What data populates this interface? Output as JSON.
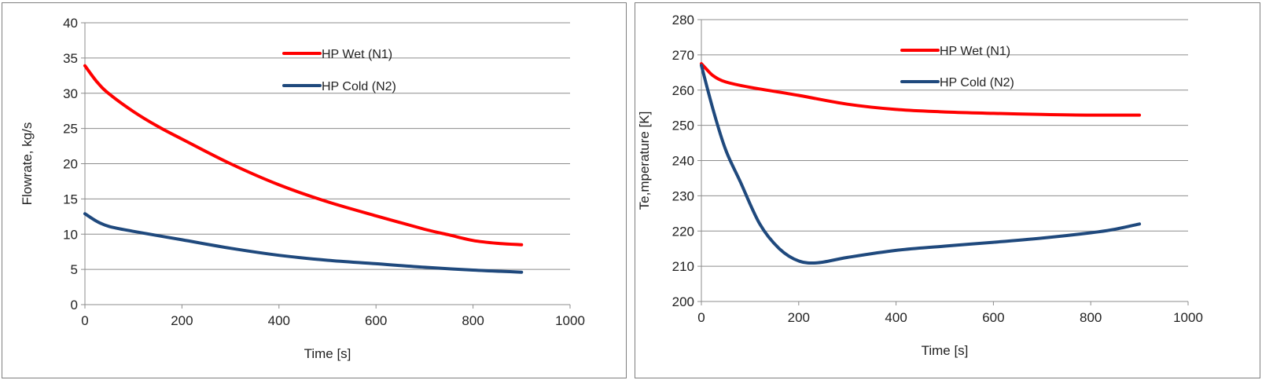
{
  "chart_data": [
    {
      "type": "line",
      "xlabel": "Time [s]",
      "ylabel": "Flowrate, kg/s",
      "xlim": [
        0,
        1000
      ],
      "ylim": [
        0,
        40
      ],
      "x_ticks": [
        "0",
        "200",
        "400",
        "600",
        "800",
        "1000"
      ],
      "y_ticks": [
        "0",
        "5",
        "10",
        "15",
        "20",
        "25",
        "30",
        "35",
        "40"
      ],
      "grid": "horizontal",
      "legend": "top-center",
      "series": [
        {
          "name": "HP Wet (N1)",
          "color": "#ff0000",
          "x": [
            0,
            25,
            50,
            100,
            150,
            200,
            300,
            400,
            500,
            600,
            700,
            750,
            800,
            850,
            900
          ],
          "y": [
            33.9,
            31.6,
            29.9,
            27.4,
            25.3,
            23.5,
            20.0,
            17.0,
            14.6,
            12.6,
            10.7,
            9.9,
            9.1,
            8.7,
            8.5
          ]
        },
        {
          "name": "HP Cold (N2)",
          "color": "#1f497d",
          "x": [
            0,
            25,
            50,
            100,
            200,
            300,
            400,
            500,
            600,
            700,
            800,
            900
          ],
          "y": [
            12.9,
            11.8,
            11.1,
            10.4,
            9.2,
            8.0,
            7.0,
            6.3,
            5.8,
            5.3,
            4.9,
            4.6
          ]
        }
      ]
    },
    {
      "type": "line",
      "xlabel": "Time [s]",
      "ylabel": "Te,mperature [K]",
      "xlim": [
        0,
        1000
      ],
      "ylim": [
        200,
        280
      ],
      "x_ticks": [
        "0",
        "200",
        "400",
        "600",
        "800",
        "1000"
      ],
      "y_ticks": [
        "200",
        "210",
        "220",
        "230",
        "240",
        "250",
        "260",
        "270",
        "280"
      ],
      "grid": "horizontal",
      "legend": "top-center",
      "series": [
        {
          "name": "HP Wet (N1)",
          "color": "#ff0000",
          "x": [
            0,
            10,
            25,
            50,
            100,
            200,
            300,
            400,
            500,
            600,
            700,
            800,
            900
          ],
          "y": [
            267.5,
            266.0,
            264.0,
            262.3,
            260.8,
            258.5,
            256.0,
            254.5,
            253.8,
            253.4,
            253.1,
            252.9,
            252.9
          ]
        },
        {
          "name": "HP Cold (N2)",
          "color": "#1f497d",
          "x": [
            0,
            25,
            50,
            80,
            120,
            160,
            200,
            240,
            300,
            400,
            500,
            600,
            700,
            800,
            850,
            900
          ],
          "y": [
            267,
            254,
            243,
            234,
            222,
            215,
            211.5,
            211,
            212.5,
            214.5,
            215.7,
            216.8,
            218,
            219.5,
            220.5,
            222
          ]
        }
      ]
    }
  ]
}
